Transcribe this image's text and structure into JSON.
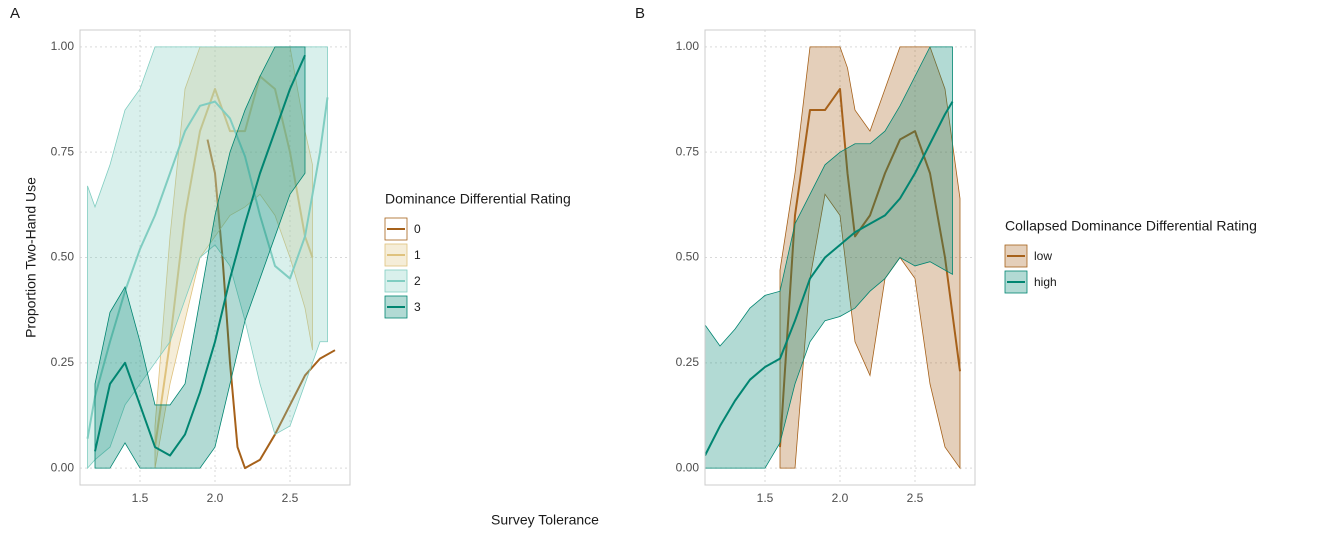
{
  "chart_data": [
    {
      "type": "line",
      "panel_label": "A",
      "y_label": "Proportion Two-Hand Use",
      "legend_title": "Dominance Differential Rating",
      "xlim": [
        1.1,
        2.9
      ],
      "ylim": [
        -0.04,
        1.04
      ],
      "xticks": [
        1.5,
        {
          "value": 2,
          "label": "2.0"
        },
        2.5
      ],
      "yticks": [
        {
          "value": 0,
          "label": "0.00"
        },
        {
          "value": 0.25,
          "label": "0.25"
        },
        {
          "value": 0.5,
          "label": "0.50"
        },
        {
          "value": 0.75,
          "label": "0.75"
        },
        {
          "value": 1,
          "label": "1.00"
        }
      ],
      "grid": true,
      "series": [
        {
          "name": "0",
          "color": "#a6611a",
          "x": [
            1.95,
            2.0,
            2.05,
            2.1,
            2.15,
            2.2,
            2.3,
            2.4,
            2.5,
            2.6,
            2.7,
            2.8
          ],
          "values": [
            0.78,
            0.7,
            0.5,
            0.25,
            0.05,
            0.0,
            0.02,
            0.08,
            0.15,
            0.22,
            0.26,
            0.28
          ]
        },
        {
          "name": "1",
          "color": "#dfc27d",
          "x": [
            1.6,
            1.7,
            1.8,
            1.9,
            2.0,
            2.1,
            2.2,
            2.3,
            2.4,
            2.5,
            2.6,
            2.65
          ],
          "values": [
            0.05,
            0.3,
            0.6,
            0.8,
            0.9,
            0.8,
            0.8,
            0.93,
            0.9,
            0.75,
            0.55,
            0.5
          ],
          "lower": [
            0,
            0.2,
            0.35,
            0.5,
            0.55,
            0.6,
            0.62,
            0.65,
            0.6,
            0.5,
            0.38,
            0.28
          ],
          "upper": [
            0.1,
            0.55,
            0.9,
            1,
            1,
            1,
            1,
            1,
            1,
            1,
            0.8,
            0.72
          ]
        },
        {
          "name": "2",
          "color": "#80cdc1",
          "x": [
            1.15,
            1.2,
            1.3,
            1.4,
            1.5,
            1.6,
            1.7,
            1.8,
            1.9,
            2.0,
            2.1,
            2.2,
            2.3,
            2.4,
            2.5,
            2.6,
            2.7,
            2.75
          ],
          "values": [
            0.07,
            0.17,
            0.3,
            0.42,
            0.52,
            0.6,
            0.7,
            0.8,
            0.86,
            0.87,
            0.83,
            0.74,
            0.6,
            0.48,
            0.45,
            0.55,
            0.75,
            0.88
          ],
          "lower": [
            0,
            0.02,
            0.05,
            0.15,
            0.2,
            0.25,
            0.3,
            0.4,
            0.5,
            0.53,
            0.48,
            0.35,
            0.2,
            0.08,
            0.1,
            0.2,
            0.3,
            0.3
          ],
          "upper": [
            0.67,
            0.62,
            0.72,
            0.85,
            0.9,
            1,
            1,
            1,
            1,
            1,
            1,
            1,
            1,
            1,
            1,
            1,
            1,
            1
          ]
        },
        {
          "name": "3",
          "color": "#018571",
          "x": [
            1.2,
            1.3,
            1.4,
            1.5,
            1.6,
            1.7,
            1.8,
            1.9,
            2.0,
            2.1,
            2.2,
            2.3,
            2.4,
            2.5,
            2.6
          ],
          "values": [
            0.04,
            0.2,
            0.25,
            0.15,
            0.05,
            0.03,
            0.08,
            0.18,
            0.3,
            0.45,
            0.58,
            0.7,
            0.8,
            0.9,
            0.98
          ],
          "lower": [
            0,
            0,
            0.06,
            0,
            0,
            0,
            0,
            0,
            0.05,
            0.2,
            0.35,
            0.45,
            0.55,
            0.65,
            0.7
          ],
          "upper": [
            0.2,
            0.37,
            0.43,
            0.3,
            0.15,
            0.15,
            0.2,
            0.4,
            0.6,
            0.75,
            0.85,
            0.93,
            1,
            1,
            1
          ]
        }
      ]
    },
    {
      "type": "line",
      "panel_label": "B",
      "legend_title": "Collapsed Dominance Differential Rating",
      "xlim": [
        1.1,
        2.9
      ],
      "ylim": [
        -0.04,
        1.04
      ],
      "xticks": [
        1.5,
        {
          "value": 2,
          "label": "2.0"
        },
        2.5
      ],
      "yticks": [
        {
          "value": 0,
          "label": "0.00"
        },
        {
          "value": 0.25,
          "label": "0.25"
        },
        {
          "value": 0.5,
          "label": "0.50"
        },
        {
          "value": 0.75,
          "label": "0.75"
        },
        {
          "value": 1,
          "label": "1.00"
        }
      ],
      "grid": true,
      "series": [
        {
          "name": "low",
          "color": "#a6611a",
          "x": [
            1.6,
            1.7,
            1.8,
            1.9,
            2.0,
            2.05,
            2.1,
            2.2,
            2.3,
            2.4,
            2.5,
            2.6,
            2.7,
            2.8
          ],
          "values": [
            0.05,
            0.6,
            0.85,
            0.85,
            0.9,
            0.7,
            0.55,
            0.6,
            0.7,
            0.78,
            0.8,
            0.7,
            0.5,
            0.23
          ],
          "lower": [
            0,
            0,
            0.45,
            0.65,
            0.6,
            0.45,
            0.3,
            0.22,
            0.45,
            0.5,
            0.45,
            0.2,
            0.05,
            0
          ],
          "upper": [
            0.47,
            0.7,
            1,
            1,
            1,
            0.95,
            0.85,
            0.8,
            0.9,
            1,
            1,
            1,
            0.9,
            0.64
          ]
        },
        {
          "name": "high",
          "color": "#018571",
          "x": [
            1.1,
            1.2,
            1.3,
            1.4,
            1.5,
            1.6,
            1.7,
            1.8,
            1.9,
            2.0,
            2.1,
            2.2,
            2.3,
            2.4,
            2.5,
            2.6,
            2.7,
            2.75
          ],
          "values": [
            0.03,
            0.1,
            0.16,
            0.21,
            0.24,
            0.26,
            0.35,
            0.45,
            0.5,
            0.53,
            0.56,
            0.58,
            0.6,
            0.64,
            0.7,
            0.77,
            0.84,
            0.87
          ],
          "lower": [
            0,
            0,
            0,
            0,
            0,
            0.06,
            0.2,
            0.3,
            0.35,
            0.36,
            0.38,
            0.42,
            0.45,
            0.5,
            0.48,
            0.49,
            0.47,
            0.46
          ],
          "upper": [
            0.34,
            0.29,
            0.33,
            0.38,
            0.41,
            0.42,
            0.58,
            0.65,
            0.72,
            0.75,
            0.77,
            0.77,
            0.8,
            0.86,
            0.93,
            1,
            1,
            1
          ]
        }
      ]
    }
  ],
  "x_label": "Survey Tolerance"
}
